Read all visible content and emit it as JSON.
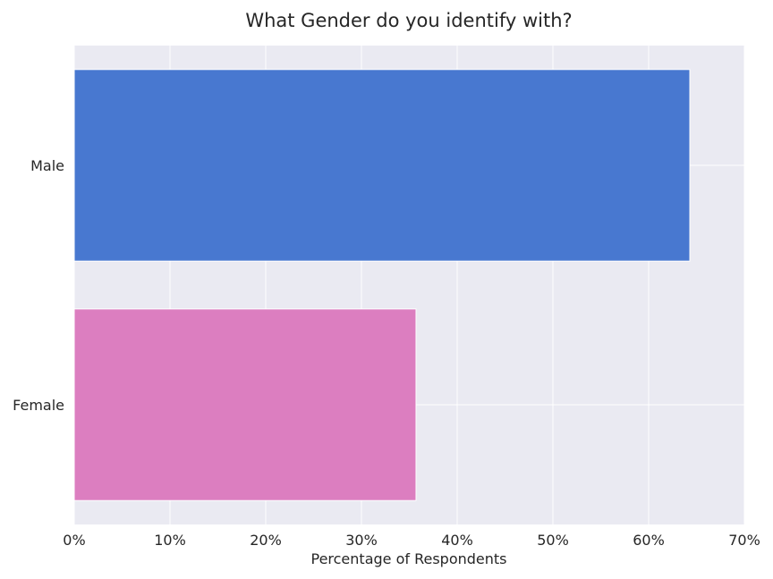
{
  "chart_data": {
    "type": "bar",
    "orientation": "horizontal",
    "title": "What Gender do you identify with?",
    "xlabel": "Percentage of Respondents",
    "ylabel": "",
    "categories": [
      "Male",
      "Female"
    ],
    "values": [
      64.3,
      35.7
    ],
    "colors": [
      "#4878d0",
      "#dc7ec0"
    ],
    "xlim": [
      0,
      70
    ],
    "xticks": [
      0,
      10,
      20,
      30,
      40,
      50,
      60,
      70
    ],
    "xtick_labels": [
      "0%",
      "10%",
      "20%",
      "30%",
      "40%",
      "50%",
      "60%",
      "70%"
    ],
    "grid": true,
    "legend": "none",
    "style": {
      "background": "#eaeaf2",
      "grid_color": "#ffffff"
    }
  }
}
